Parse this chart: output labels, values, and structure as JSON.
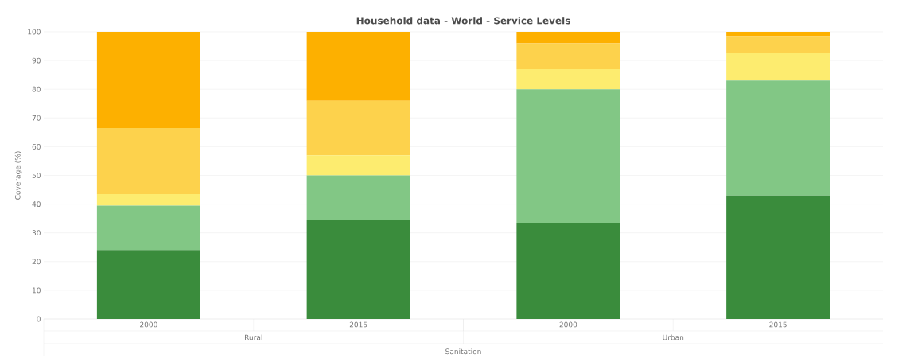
{
  "chart_data": {
    "type": "bar",
    "stacked": true,
    "title": "Household data - World - Service Levels",
    "ylabel": "Coverage (%)",
    "xlabel": "Sanitation",
    "categories": [
      "2000",
      "2015",
      "2000",
      "2015"
    ],
    "annotations": [
      "Rural",
      "Urban"
    ],
    "series": [
      {
        "color": "#3a8c3c",
        "values": [
          24,
          34.5,
          33.5,
          43
        ]
      },
      {
        "color": "#82c785",
        "values": [
          15.5,
          15.5,
          46.5,
          40
        ]
      },
      {
        "color": "#fdec6f",
        "values": [
          4,
          7,
          7,
          9.5
        ]
      },
      {
        "color": "#fdd24c",
        "values": [
          23,
          19,
          9,
          6
        ]
      },
      {
        "color": "#fdb000",
        "values": [
          33.5,
          24,
          4,
          1.5
        ]
      }
    ],
    "ylim": [
      0,
      100
    ],
    "yticks": [
      0,
      10,
      20,
      30,
      40,
      50,
      60,
      70,
      80,
      90,
      100
    ],
    "grid": "y"
  }
}
